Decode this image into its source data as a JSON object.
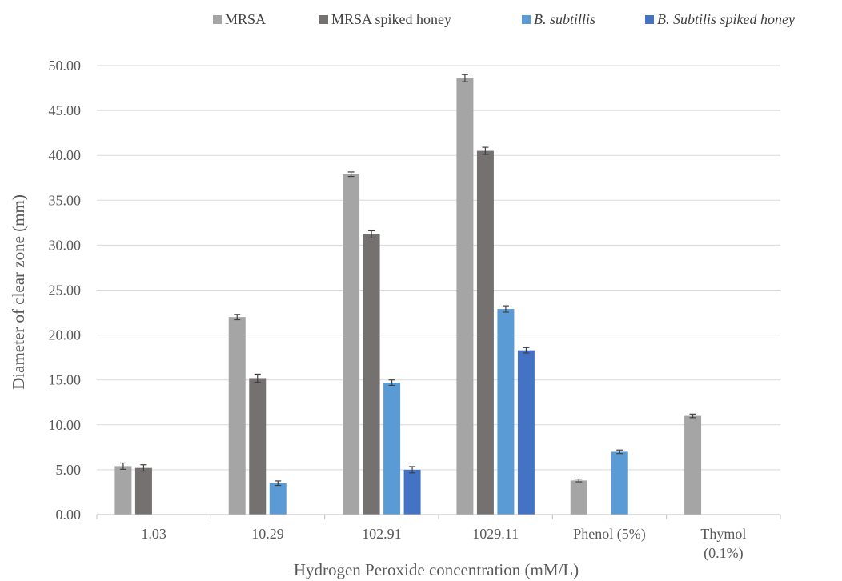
{
  "chart_data": {
    "type": "bar",
    "title": "",
    "xlabel": "Hydrogen Peroxide concentration (mM/L)",
    "ylabel": "Diameter of clear zone (mm)",
    "ylim": [
      0,
      50
    ],
    "ytick_step": 5,
    "ytick_labels": [
      "0.00",
      "5.00",
      "10.00",
      "15.00",
      "20.00",
      "25.00",
      "30.00",
      "35.00",
      "40.00",
      "45.00",
      "50.00"
    ],
    "grid": "horizontal",
    "legend_position": "top-right",
    "categories": [
      [
        "1.03"
      ],
      [
        "10.29"
      ],
      [
        "102.91"
      ],
      [
        "1029.11"
      ],
      [
        "Phenol (5%)"
      ],
      [
        "Thymol",
        "(0.1%)"
      ]
    ],
    "series": [
      {
        "name": "MRSA",
        "italic": false,
        "color": "#a5a5a5",
        "values": [
          5.4,
          22.0,
          37.9,
          48.6,
          3.8,
          11.0
        ],
        "errors": [
          0.35,
          0.3,
          0.25,
          0.4,
          0.15,
          0.2
        ]
      },
      {
        "name": "MRSA spiked honey",
        "italic": false,
        "color": "#767171",
        "values": [
          5.2,
          15.2,
          31.2,
          40.5,
          null,
          null
        ],
        "errors": [
          0.35,
          0.45,
          0.4,
          0.4,
          null,
          null
        ]
      },
      {
        "name": "B. subtillis",
        "italic": true,
        "color": "#5b9bd5",
        "values": [
          null,
          3.5,
          14.7,
          22.9,
          7.0,
          null
        ],
        "errors": [
          null,
          0.25,
          0.3,
          0.35,
          0.2,
          null
        ]
      },
      {
        "name": "B. Subtilis spiked honey",
        "italic": true,
        "color": "#4472c4",
        "values": [
          null,
          null,
          5.0,
          18.3,
          null,
          null
        ],
        "errors": [
          null,
          null,
          0.35,
          0.3,
          null,
          null
        ]
      }
    ]
  }
}
